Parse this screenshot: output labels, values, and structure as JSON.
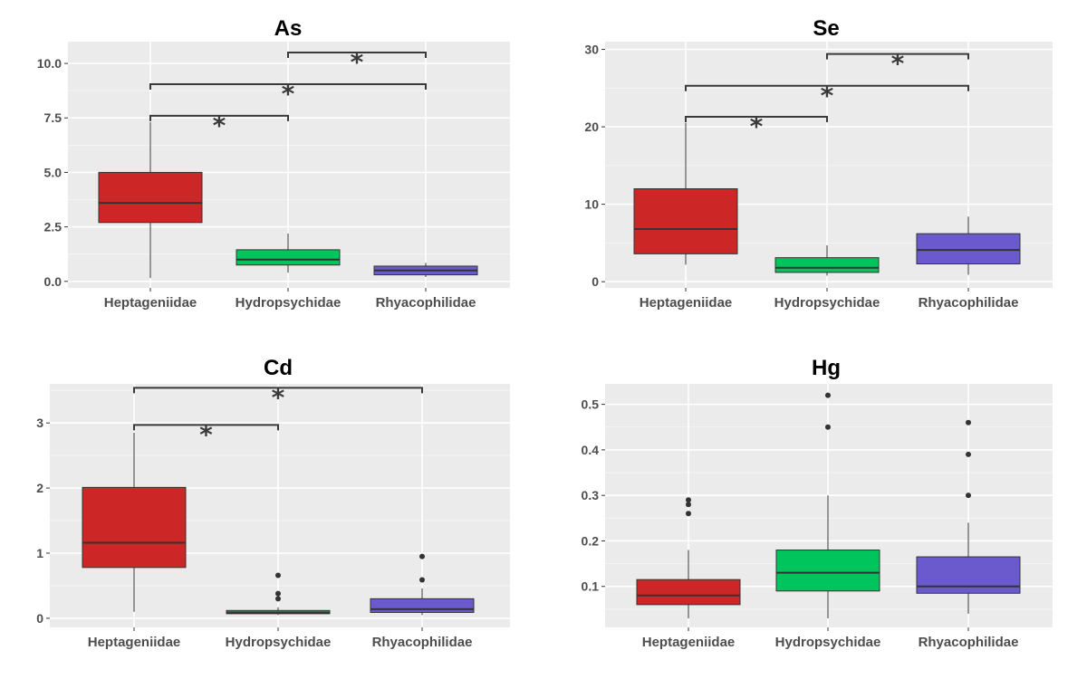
{
  "chart_data": [
    {
      "type": "box",
      "title": "As",
      "categories": [
        "Heptageniidae",
        "Hydropsychidae",
        "Rhyacophilidae"
      ],
      "colors": [
        "#cc2627",
        "#00c45c",
        "#6a5acd"
      ],
      "ylim": [
        -0.3,
        11.0
      ],
      "yticks": [
        0.0,
        2.5,
        5.0,
        7.5,
        10.0
      ],
      "ytick_labels": [
        "0.0",
        "2.5",
        "5.0",
        "7.5",
        "10.0"
      ],
      "boxes": [
        {
          "min": 0.15,
          "q1": 2.7,
          "median": 3.6,
          "q3": 5.0,
          "max": 7.3,
          "outliers": []
        },
        {
          "min": 0.4,
          "q1": 0.75,
          "median": 1.0,
          "q3": 1.45,
          "max": 2.2,
          "outliers": []
        },
        {
          "min": 0.2,
          "q1": 0.3,
          "median": 0.5,
          "q3": 0.7,
          "max": 0.85,
          "outliers": []
        }
      ],
      "significance": [
        {
          "from": 0,
          "to": 1,
          "y": 7.6,
          "label": "*"
        },
        {
          "from": 0,
          "to": 2,
          "y": 9.05,
          "label": "*"
        },
        {
          "from": 1,
          "to": 2,
          "y": 10.5,
          "label": "*"
        }
      ]
    },
    {
      "type": "box",
      "title": "Se",
      "categories": [
        "Heptageniidae",
        "Hydropsychidae",
        "Rhyacophilidae"
      ],
      "colors": [
        "#cc2627",
        "#00c45c",
        "#6a5acd"
      ],
      "ylim": [
        -0.8,
        31.0
      ],
      "yticks": [
        0,
        10,
        20,
        30
      ],
      "ytick_labels": [
        "0",
        "10",
        "20",
        "30"
      ],
      "boxes": [
        {
          "min": 2.2,
          "q1": 3.6,
          "median": 6.8,
          "q3": 12.0,
          "max": 20.5,
          "outliers": []
        },
        {
          "min": 0.8,
          "q1": 1.2,
          "median": 1.8,
          "q3": 3.1,
          "max": 4.7,
          "outliers": []
        },
        {
          "min": 0.9,
          "q1": 2.3,
          "median": 4.1,
          "q3": 6.2,
          "max": 8.4,
          "outliers": []
        }
      ],
      "significance": [
        {
          "from": 0,
          "to": 1,
          "y": 21.3,
          "label": "*"
        },
        {
          "from": 0,
          "to": 2,
          "y": 25.3,
          "label": "*"
        },
        {
          "from": 1,
          "to": 2,
          "y": 29.4,
          "label": "*"
        }
      ]
    },
    {
      "type": "box",
      "title": "Cd",
      "categories": [
        "Heptageniidae",
        "Hydropsychidae",
        "Rhyacophilidae"
      ],
      "colors": [
        "#cc2627",
        "#00c45c",
        "#6a5acd"
      ],
      "ylim": [
        -0.14,
        3.6
      ],
      "yticks": [
        0,
        1,
        2,
        3
      ],
      "ytick_labels": [
        "0",
        "1",
        "2",
        "3"
      ],
      "boxes": [
        {
          "min": 0.1,
          "q1": 0.78,
          "median": 1.16,
          "q3": 2.01,
          "max": 2.85,
          "outliers": []
        },
        {
          "min": 0.05,
          "q1": 0.07,
          "median": 0.09,
          "q3": 0.12,
          "max": 0.17,
          "outliers": [
            0.3,
            0.38,
            0.66
          ]
        },
        {
          "min": 0.05,
          "q1": 0.09,
          "median": 0.14,
          "q3": 0.3,
          "max": 0.46,
          "outliers": [
            0.59,
            0.95
          ]
        }
      ],
      "significance": [
        {
          "from": 0,
          "to": 1,
          "y": 2.97,
          "label": "*"
        },
        {
          "from": 0,
          "to": 2,
          "y": 3.54,
          "label": "*"
        }
      ]
    },
    {
      "type": "box",
      "title": "Hg",
      "categories": [
        "Heptageniidae",
        "Hydropsychidae",
        "Rhyacophilidae"
      ],
      "colors": [
        "#cc2627",
        "#00c45c",
        "#6a5acd"
      ],
      "ylim": [
        0.01,
        0.545
      ],
      "yticks": [
        0.1,
        0.2,
        0.3,
        0.4,
        0.5
      ],
      "ytick_labels": [
        "0.1",
        "0.2",
        "0.3",
        "0.4",
        "0.5"
      ],
      "boxes": [
        {
          "min": 0.03,
          "q1": 0.06,
          "median": 0.08,
          "q3": 0.115,
          "max": 0.18,
          "outliers": [
            0.26,
            0.28,
            0.29
          ]
        },
        {
          "min": 0.03,
          "q1": 0.09,
          "median": 0.13,
          "q3": 0.18,
          "max": 0.3,
          "outliers": [
            0.45,
            0.52
          ]
        },
        {
          "min": 0.04,
          "q1": 0.085,
          "median": 0.1,
          "q3": 0.165,
          "max": 0.24,
          "outliers": [
            0.3,
            0.39,
            0.46
          ]
        }
      ],
      "significance": []
    }
  ]
}
